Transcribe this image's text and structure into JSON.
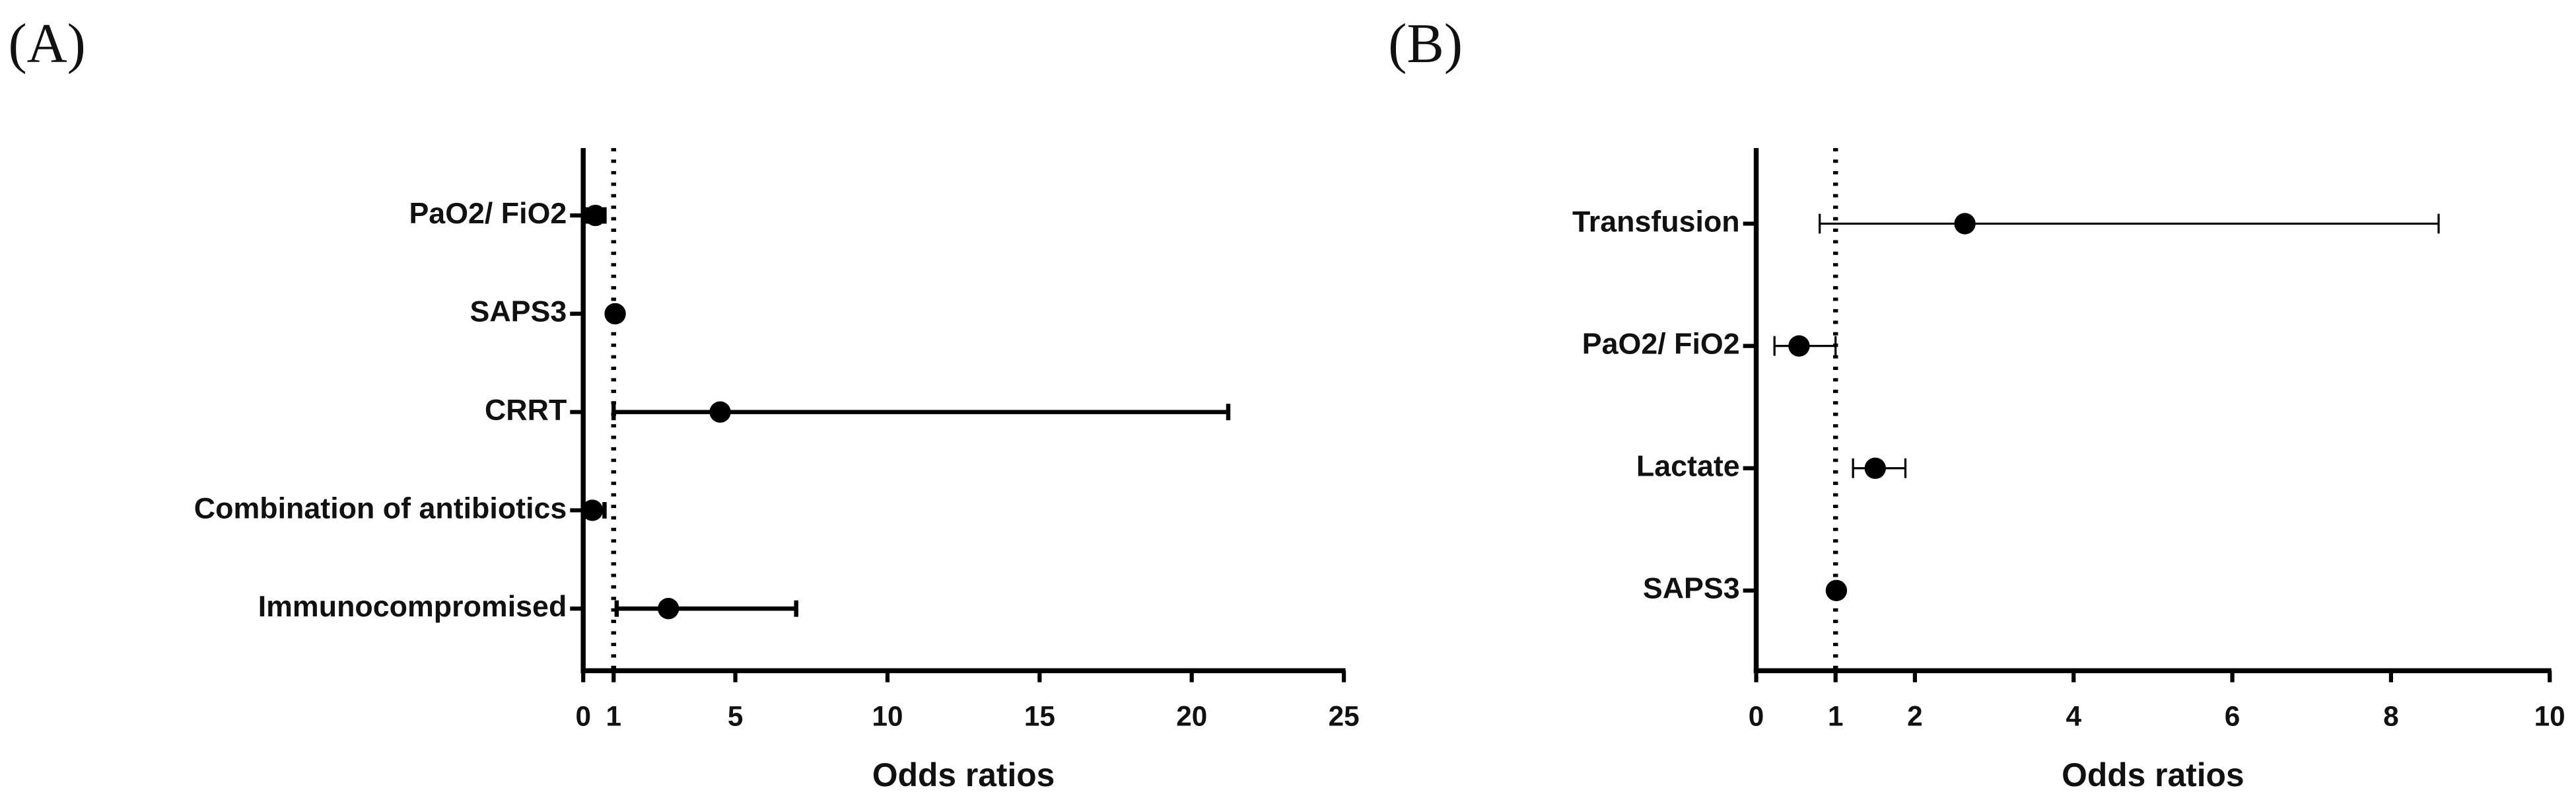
{
  "chart_data": [
    {
      "type": "forest",
      "title": "(A)",
      "x_label": "Odds ratios",
      "categories": [
        "PaO2/ FiO2",
        "SAPS3",
        "CRRT",
        "Combination of antibiotics",
        "Immunocompromised"
      ],
      "values": [
        0.4,
        1.05,
        4.5,
        0.3,
        2.8
      ],
      "lower": [
        0.15,
        1.0,
        1.0,
        0.1,
        1.1
      ],
      "upper": [
        0.7,
        1.1,
        21.2,
        0.7,
        7.0
      ],
      "reference": 1,
      "xlim": [
        0,
        25
      ],
      "xticks": [
        0,
        1,
        5,
        10,
        15,
        20,
        25
      ],
      "color": "#000000"
    },
    {
      "type": "forest",
      "title": "(B)",
      "x_label": "Odds ratios",
      "categories": [
        "Transfusion",
        "PaO2/ FiO2",
        "Lactate",
        "SAPS3"
      ],
      "values": [
        2.63,
        0.54,
        1.5,
        1.01
      ],
      "lower": [
        0.8,
        0.23,
        1.22,
        0.99
      ],
      "upper": [
        8.6,
        1.0,
        1.88,
        1.03
      ],
      "reference": 1,
      "xlim": [
        0,
        10
      ],
      "xticks": [
        0,
        1,
        2,
        4,
        6,
        8,
        10
      ],
      "color": "#000000"
    }
  ]
}
